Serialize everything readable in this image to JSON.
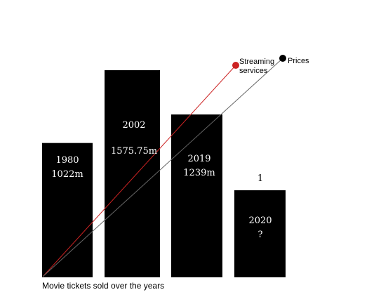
{
  "chart_data": {
    "type": "bar",
    "title": "Movie tickets sold over the years",
    "categories": [
      "1980",
      "2002",
      "2019",
      "2020"
    ],
    "values": [
      1022,
      1575.75,
      1239,
      null
    ],
    "value_labels": [
      "1022m",
      "1575.75m",
      "1239m",
      "?"
    ],
    "above_label": "1",
    "trend_lines": [
      {
        "name": "Streaming services",
        "label_lines": [
          "Streaming",
          "services"
        ],
        "color": "#cc2222"
      },
      {
        "name": "Prices",
        "label_lines": [
          "Prices"
        ],
        "color": "#666666"
      }
    ],
    "bar_color": "#000000"
  }
}
